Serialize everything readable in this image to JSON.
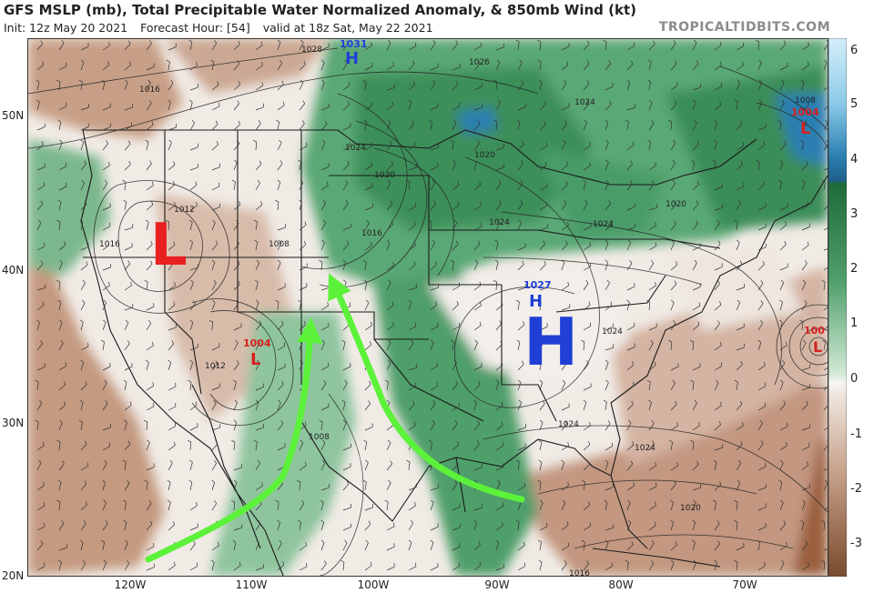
{
  "header": {
    "title": "GFS MSLP (mb), Total Precipitable Water Normalized Anomaly, & 850mb Wind (kt)",
    "init": "Init: 12z May 20 2021",
    "forecast_hour": "Forecast Hour: [54]",
    "valid": "valid at 18z Sat, May 22 2021",
    "credit": "TROPICALTIDBITS.COM"
  },
  "axes": {
    "lat_labels": [
      "50N",
      "40N",
      "30N",
      "20N"
    ],
    "lon_labels": [
      "120W",
      "110W",
      "100W",
      "90W",
      "80W",
      "70W"
    ]
  },
  "colorbar": {
    "ticks": [
      "6",
      "5",
      "4",
      "3",
      "2",
      "1",
      "0",
      "-1",
      "-2",
      "-3"
    ],
    "colors": {
      "positive_high": "#a9d8ee",
      "positive_mid": "#2a7fb0",
      "green_dark": "#1f6b3a",
      "green_light": "#cfe8d3",
      "negative_light": "#e6d5c9",
      "negative_dark": "#7a4a2c"
    }
  },
  "pressure_centers": [
    {
      "type": "H",
      "value": "1031",
      "color": "#1f3fd6"
    },
    {
      "type": "H",
      "value": "1027",
      "color": "#1f3fd6"
    },
    {
      "type": "L",
      "value": "1004",
      "color": "#d42020"
    },
    {
      "type": "L",
      "value": "1004",
      "color": "#d42020"
    },
    {
      "type": "L",
      "value": "100",
      "color": "#d42020"
    }
  ],
  "annotations": {
    "big_H": "H",
    "big_L": "L",
    "arrow_color": "#5cf23a"
  },
  "isobar_labels": [
    "1028",
    "1026",
    "1016",
    "1012",
    "1016",
    "1008",
    "1012",
    "1024",
    "1020",
    "1016",
    "1024",
    "1020",
    "1024",
    "1008",
    "1020",
    "1024",
    "1024",
    "1024",
    "1024",
    "1020",
    "1016",
    "1008"
  ]
}
